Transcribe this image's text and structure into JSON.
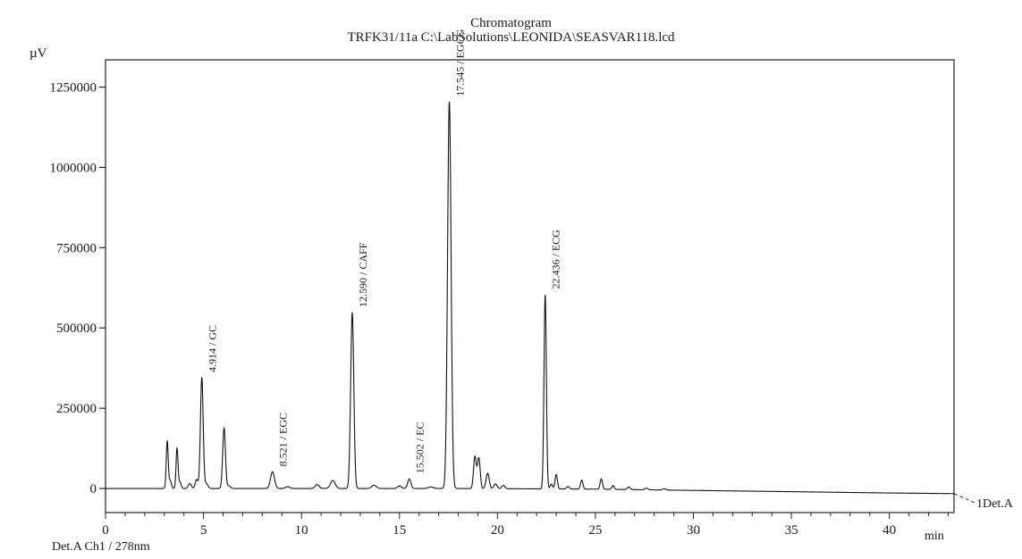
{
  "chart_data": {
    "type": "line",
    "title": "Chromatogram",
    "subtitle": "TRFK31/11a C:\\LabSolutions\\LEONIDA\\SEASVAR118.lcd",
    "ylabel": "µV",
    "xlabel": "min",
    "xlim": [
      0,
      43.3
    ],
    "ylim": [
      -75000,
      1335000
    ],
    "xticks": [
      0,
      5,
      10,
      15,
      20,
      25,
      30,
      35,
      40
    ],
    "yticks": [
      0,
      250000,
      500000,
      750000,
      1000000,
      1250000
    ],
    "ytick_labels": [
      "0",
      "250000",
      "500000",
      "750000",
      "1000000",
      "1250000"
    ],
    "grid": false,
    "legend": "bottom-left",
    "detector_label": "Det.A Ch1 / 278nm",
    "trace_end_label": "1Det.A",
    "annotations": [
      {
        "x": 4.914,
        "y": 345000,
        "text": "4.914 / GC"
      },
      {
        "x": 8.521,
        "y": 52000,
        "text": "8.521 / EGC"
      },
      {
        "x": 12.59,
        "y": 548000,
        "text": "12.590 / CAFF"
      },
      {
        "x": 15.502,
        "y": 30000,
        "text": "15.502 / EC"
      },
      {
        "x": 17.545,
        "y": 1205000,
        "text": "17.545 / EGCG"
      },
      {
        "x": 22.436,
        "y": 605000,
        "text": "22.436 / ECG"
      }
    ],
    "baseline": [
      [
        0,
        0
      ],
      [
        18,
        0
      ],
      [
        25,
        -2000
      ],
      [
        30,
        -6000
      ],
      [
        35,
        -10000
      ],
      [
        40,
        -14000
      ],
      [
        43.3,
        -16000
      ]
    ],
    "peaks": [
      {
        "rt": 3.15,
        "height": 148000,
        "width": 0.05
      },
      {
        "rt": 3.3,
        "height": 25000,
        "width": 0.06
      },
      {
        "rt": 3.65,
        "height": 125000,
        "width": 0.05
      },
      {
        "rt": 3.8,
        "height": 20000,
        "width": 0.06
      },
      {
        "rt": 4.3,
        "height": 15000,
        "width": 0.08
      },
      {
        "rt": 4.65,
        "height": 28000,
        "width": 0.07
      },
      {
        "rt": 4.914,
        "height": 345000,
        "width": 0.07
      },
      {
        "rt": 5.15,
        "height": 15000,
        "width": 0.08
      },
      {
        "rt": 6.05,
        "height": 188000,
        "width": 0.07
      },
      {
        "rt": 6.3,
        "height": 8000,
        "width": 0.08
      },
      {
        "rt": 8.521,
        "height": 52000,
        "width": 0.1
      },
      {
        "rt": 9.3,
        "height": 6000,
        "width": 0.1
      },
      {
        "rt": 10.8,
        "height": 12000,
        "width": 0.1
      },
      {
        "rt": 11.6,
        "height": 25000,
        "width": 0.12
      },
      {
        "rt": 12.59,
        "height": 548000,
        "width": 0.08
      },
      {
        "rt": 13.7,
        "height": 10000,
        "width": 0.12
      },
      {
        "rt": 15.0,
        "height": 8000,
        "width": 0.1
      },
      {
        "rt": 15.502,
        "height": 30000,
        "width": 0.08
      },
      {
        "rt": 16.6,
        "height": 5000,
        "width": 0.12
      },
      {
        "rt": 17.545,
        "height": 1205000,
        "width": 0.09
      },
      {
        "rt": 18.85,
        "height": 100000,
        "width": 0.07
      },
      {
        "rt": 19.05,
        "height": 95000,
        "width": 0.07
      },
      {
        "rt": 19.5,
        "height": 48000,
        "width": 0.08
      },
      {
        "rt": 19.9,
        "height": 15000,
        "width": 0.08
      },
      {
        "rt": 20.3,
        "height": 10000,
        "width": 0.08
      },
      {
        "rt": 22.436,
        "height": 605000,
        "width": 0.06
      },
      {
        "rt": 22.75,
        "height": 15000,
        "width": 0.06
      },
      {
        "rt": 23.0,
        "height": 45000,
        "width": 0.06
      },
      {
        "rt": 23.6,
        "height": 8000,
        "width": 0.07
      },
      {
        "rt": 24.3,
        "height": 28000,
        "width": 0.06
      },
      {
        "rt": 25.3,
        "height": 32000,
        "width": 0.06
      },
      {
        "rt": 25.9,
        "height": 12000,
        "width": 0.06
      },
      {
        "rt": 26.7,
        "height": 8000,
        "width": 0.07
      },
      {
        "rt": 27.6,
        "height": 5000,
        "width": 0.08
      },
      {
        "rt": 28.5,
        "height": 4000,
        "width": 0.08
      }
    ]
  }
}
